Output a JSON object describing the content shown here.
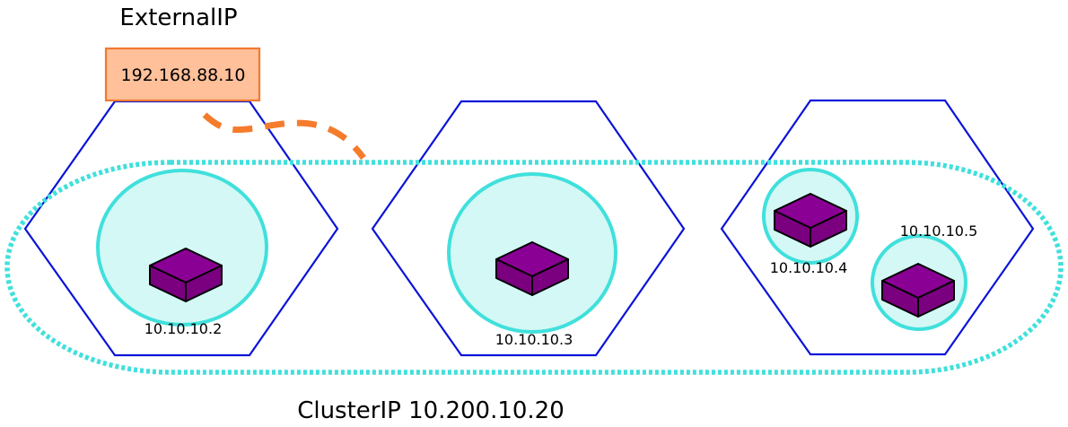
{
  "external": {
    "title": "ExternalIP",
    "address": "192.168.88.10"
  },
  "cluster": {
    "label": "ClusterIP 10.200.10.20"
  },
  "nodes": [
    {
      "pods": [
        {
          "ip": "10.10.10.2"
        }
      ]
    },
    {
      "pods": [
        {
          "ip": "10.10.10.3"
        }
      ]
    },
    {
      "pods": [
        {
          "ip": "10.10.10.4"
        },
        {
          "ip": "10.10.10.5"
        }
      ]
    }
  ],
  "colors": {
    "node_border": "#0a14d8",
    "pod_fill": "#d4f8f5",
    "pod_border": "#40e0dc",
    "container_top": "#8b0094",
    "container_side": "#7a007f",
    "external_fill": "#ffc09a",
    "external_border": "#f07a30",
    "link": "#f47c2c",
    "cluster_border": "#40e0dc"
  }
}
